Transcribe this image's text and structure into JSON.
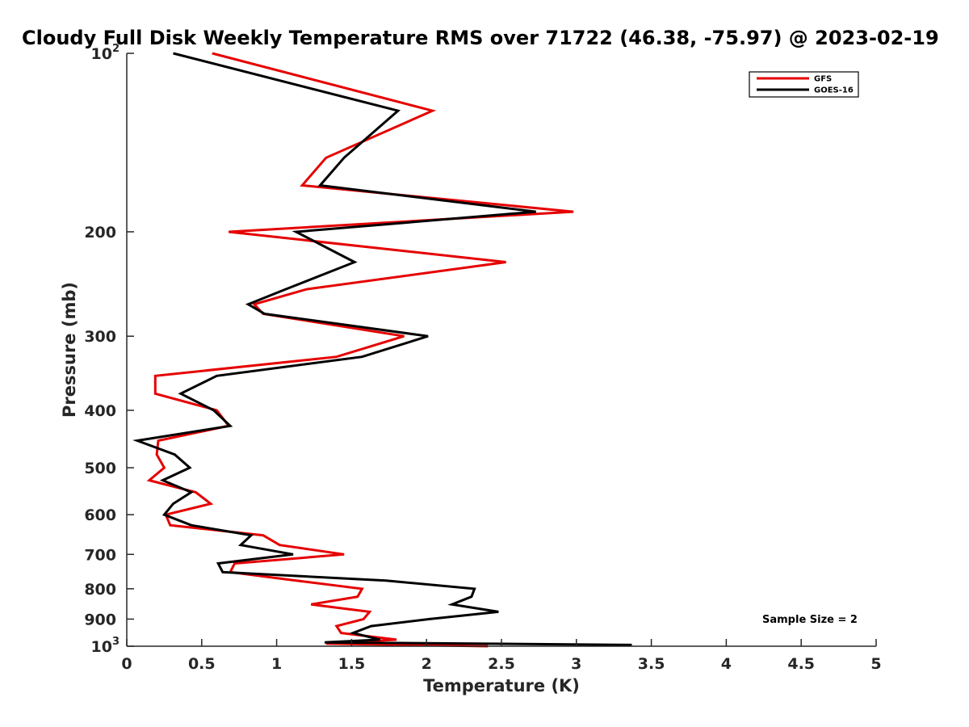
{
  "chart_data": {
    "type": "line",
    "title": "Cloudy Full Disk Weekly Temperature RMS over 71722 (46.38, -75.97) @ 2023-02-19",
    "xlabel": "Temperature (K)",
    "ylabel": "Pressure (mb)",
    "xlim": [
      0,
      5
    ],
    "ylim": [
      100,
      1000
    ],
    "y_scale": "log",
    "y_reversed": true,
    "grid": false,
    "legend_location": "top-right",
    "annotation": "Sample Size = 2",
    "x_ticks": [
      {
        "value": 0,
        "label": "0"
      },
      {
        "value": 0.5,
        "label": "0.5"
      },
      {
        "value": 1,
        "label": "1"
      },
      {
        "value": 1.5,
        "label": "1.5"
      },
      {
        "value": 2,
        "label": "2"
      },
      {
        "value": 2.5,
        "label": "2.5"
      },
      {
        "value": 3,
        "label": "3"
      },
      {
        "value": 3.5,
        "label": "3.5"
      },
      {
        "value": 4,
        "label": "4"
      },
      {
        "value": 4.5,
        "label": "4.5"
      },
      {
        "value": 5,
        "label": "5"
      }
    ],
    "y_ticks": [
      {
        "value": 100,
        "label": "",
        "base": "10",
        "exp": "2"
      },
      {
        "value": 200,
        "label": "200"
      },
      {
        "value": 300,
        "label": "300"
      },
      {
        "value": 400,
        "label": "400"
      },
      {
        "value": 500,
        "label": "500"
      },
      {
        "value": 600,
        "label": "600"
      },
      {
        "value": 700,
        "label": "700"
      },
      {
        "value": 800,
        "label": "800"
      },
      {
        "value": 900,
        "label": "900"
      },
      {
        "value": 1000,
        "label": "",
        "base": "10",
        "exp": "3"
      }
    ],
    "series": [
      {
        "name": "GFS",
        "color": "#e60000",
        "points": [
          {
            "x": 0.57,
            "y": 100
          },
          {
            "x": 2.04,
            "y": 125
          },
          {
            "x": 1.33,
            "y": 150
          },
          {
            "x": 1.17,
            "y": 167
          },
          {
            "x": 2.98,
            "y": 185
          },
          {
            "x": 0.68,
            "y": 200
          },
          {
            "x": 2.53,
            "y": 225
          },
          {
            "x": 1.2,
            "y": 250
          },
          {
            "x": 0.85,
            "y": 265
          },
          {
            "x": 0.91,
            "y": 275
          },
          {
            "x": 1.85,
            "y": 300
          },
          {
            "x": 1.4,
            "y": 325
          },
          {
            "x": 0.19,
            "y": 350
          },
          {
            "x": 0.19,
            "y": 375
          },
          {
            "x": 0.6,
            "y": 400
          },
          {
            "x": 0.68,
            "y": 425
          },
          {
            "x": 0.21,
            "y": 450
          },
          {
            "x": 0.2,
            "y": 475
          },
          {
            "x": 0.25,
            "y": 500
          },
          {
            "x": 0.15,
            "y": 525
          },
          {
            "x": 0.46,
            "y": 550
          },
          {
            "x": 0.56,
            "y": 575
          },
          {
            "x": 0.26,
            "y": 600
          },
          {
            "x": 0.29,
            "y": 625
          },
          {
            "x": 0.91,
            "y": 650
          },
          {
            "x": 1.02,
            "y": 675
          },
          {
            "x": 1.45,
            "y": 700
          },
          {
            "x": 0.72,
            "y": 725
          },
          {
            "x": 0.69,
            "y": 750
          },
          {
            "x": 1.13,
            "y": 775
          },
          {
            "x": 1.57,
            "y": 800
          },
          {
            "x": 1.54,
            "y": 825
          },
          {
            "x": 1.23,
            "y": 850
          },
          {
            "x": 1.62,
            "y": 875
          },
          {
            "x": 1.58,
            "y": 900
          },
          {
            "x": 1.4,
            "y": 925
          },
          {
            "x": 1.43,
            "y": 950
          },
          {
            "x": 1.8,
            "y": 975
          },
          {
            "x": 1.33,
            "y": 990
          },
          {
            "x": 2.41,
            "y": 1000
          }
        ]
      },
      {
        "name": "GOES-16",
        "color": "#000000",
        "points": [
          {
            "x": 0.31,
            "y": 100
          },
          {
            "x": 1.81,
            "y": 125
          },
          {
            "x": 1.45,
            "y": 150
          },
          {
            "x": 1.29,
            "y": 167
          },
          {
            "x": 2.73,
            "y": 185
          },
          {
            "x": 1.13,
            "y": 200
          },
          {
            "x": 1.52,
            "y": 225
          },
          {
            "x": 1.06,
            "y": 250
          },
          {
            "x": 0.81,
            "y": 265
          },
          {
            "x": 0.92,
            "y": 275
          },
          {
            "x": 2.01,
            "y": 300
          },
          {
            "x": 1.57,
            "y": 325
          },
          {
            "x": 0.6,
            "y": 350
          },
          {
            "x": 0.36,
            "y": 375
          },
          {
            "x": 0.58,
            "y": 400
          },
          {
            "x": 0.69,
            "y": 425
          },
          {
            "x": 0.07,
            "y": 450
          },
          {
            "x": 0.32,
            "y": 475
          },
          {
            "x": 0.42,
            "y": 500
          },
          {
            "x": 0.24,
            "y": 525
          },
          {
            "x": 0.43,
            "y": 550
          },
          {
            "x": 0.31,
            "y": 575
          },
          {
            "x": 0.25,
            "y": 600
          },
          {
            "x": 0.43,
            "y": 625
          },
          {
            "x": 0.83,
            "y": 650
          },
          {
            "x": 0.76,
            "y": 675
          },
          {
            "x": 1.11,
            "y": 700
          },
          {
            "x": 0.61,
            "y": 725
          },
          {
            "x": 0.64,
            "y": 750
          },
          {
            "x": 1.73,
            "y": 775
          },
          {
            "x": 2.32,
            "y": 800
          },
          {
            "x": 2.3,
            "y": 825
          },
          {
            "x": 2.17,
            "y": 850
          },
          {
            "x": 2.48,
            "y": 875
          },
          {
            "x": 2.02,
            "y": 900
          },
          {
            "x": 1.63,
            "y": 925
          },
          {
            "x": 1.51,
            "y": 950
          },
          {
            "x": 1.69,
            "y": 975
          },
          {
            "x": 1.32,
            "y": 985
          },
          {
            "x": 3.37,
            "y": 995
          }
        ]
      }
    ]
  }
}
